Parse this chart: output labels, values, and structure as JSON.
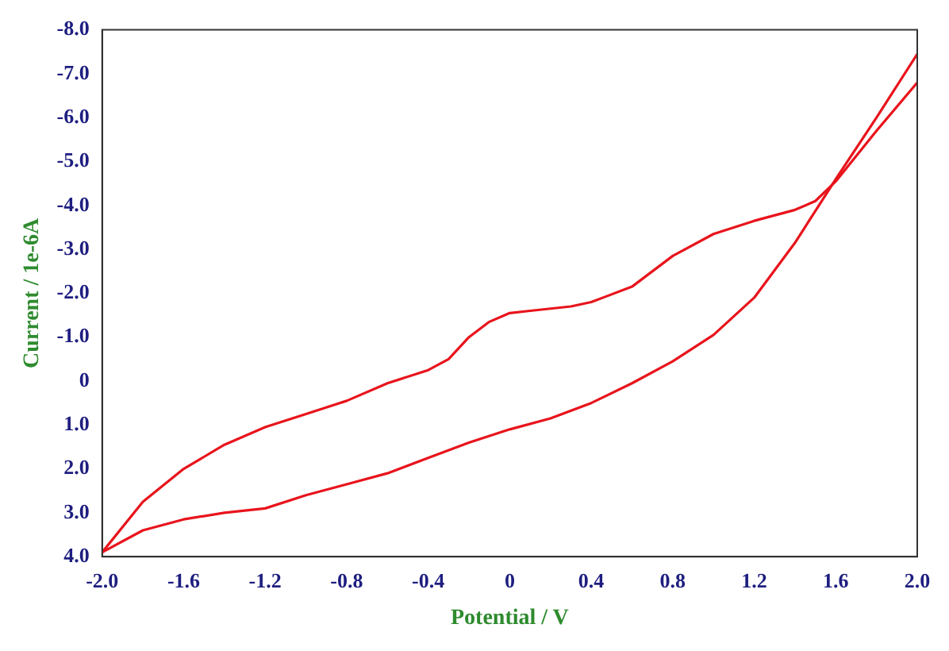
{
  "chart_data": {
    "type": "line",
    "xlabel": "Potential / V",
    "ylabel": "Current / 1e-6A",
    "series": [
      {
        "color": "#e8141c",
        "x": [
          -2.0,
          -1.8,
          -1.6,
          -1.4,
          -1.2,
          -1.0,
          -0.8,
          -0.6,
          -0.4,
          -0.3,
          -0.2,
          -0.1,
          0,
          0.1,
          0.2,
          0.3,
          0.4,
          0.6,
          0.8,
          1.0,
          1.2,
          1.4,
          1.5,
          1.6,
          1.8,
          2.0
        ],
        "values": [
          3.9,
          2.75,
          2.0,
          1.45,
          1.05,
          0.75,
          0.45,
          0.05,
          -0.25,
          -0.5,
          -1.0,
          -1.35,
          -1.55,
          -1.6,
          -1.65,
          -1.7,
          -1.8,
          -2.15,
          -2.85,
          -3.35,
          -3.65,
          -3.9,
          -4.1,
          -4.55,
          -5.7,
          -6.8
        ]
      },
      {
        "color": "#e8141c",
        "x": [
          -2.0,
          -1.8,
          -1.6,
          -1.4,
          -1.2,
          -1.0,
          -0.8,
          -0.6,
          -0.4,
          -0.2,
          0,
          0.2,
          0.4,
          0.6,
          0.8,
          1.0,
          1.2,
          1.4,
          1.6,
          1.8,
          2.0
        ],
        "values": [
          3.9,
          3.4,
          3.15,
          3.0,
          2.9,
          2.6,
          2.35,
          2.1,
          1.75,
          1.4,
          1.1,
          0.85,
          0.5,
          0.05,
          -0.45,
          -1.05,
          -1.9,
          -3.15,
          -4.6,
          -6.0,
          -7.45
        ]
      }
    ],
    "xlim": [
      -2.0,
      2.0
    ],
    "xticks": [
      {
        "value": -2.0,
        "label": "-2.0"
      },
      {
        "value": -1.6,
        "label": "-1.6"
      },
      {
        "value": -1.2,
        "label": "-1.2"
      },
      {
        "value": -0.8,
        "label": "-0.8"
      },
      {
        "value": -0.4,
        "label": "-0.4"
      },
      0,
      {
        "value": 0.4,
        "label": "0.4"
      },
      {
        "value": 0.8,
        "label": "0.8"
      },
      {
        "value": 1.2,
        "label": "1.2"
      },
      {
        "value": 1.6,
        "label": "1.6"
      },
      {
        "value": 2.0,
        "label": "2.0"
      }
    ],
    "ylim": [
      4.0,
      -8.0
    ],
    "yticks": [
      {
        "value": -8.0,
        "label": "-8.0"
      },
      {
        "value": -7.0,
        "label": "-7.0"
      },
      {
        "value": -6.0,
        "label": "-6.0"
      },
      {
        "value": -5.0,
        "label": "-5.0"
      },
      {
        "value": -4.0,
        "label": "-4.0"
      },
      {
        "value": -3.0,
        "label": "-3.0"
      },
      {
        "value": -2.0,
        "label": "-2.0"
      },
      {
        "value": -1.0,
        "label": "-1.0"
      },
      0,
      {
        "value": 1.0,
        "label": "1.0"
      },
      {
        "value": 2.0,
        "label": "2.0"
      },
      {
        "value": 3.0,
        "label": "3.0"
      },
      {
        "value": 4.0,
        "label": "4.0"
      }
    ],
    "marker": "none",
    "line_style": "solid",
    "grid": false,
    "legend": false
  }
}
